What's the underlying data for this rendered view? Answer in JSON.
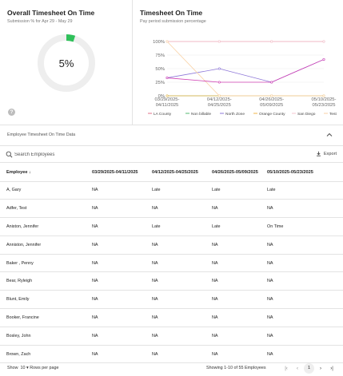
{
  "overall": {
    "title": "Overall Timesheet On Time",
    "subtitle": "Submission % for Apr 29 - May 29",
    "percent_label": "5%",
    "percent_value": 5,
    "progress_color": "#2fc05a",
    "track_color": "#eeeeee",
    "help_icon": "question-circle-icon"
  },
  "timesheet_chart": {
    "title": "Timesheet On Time",
    "subtitle": "Pay period submission percentage"
  },
  "chart_data": {
    "type": "line",
    "title": "Timesheet On Time",
    "subtitle": "Pay period submission percentage",
    "categories": [
      [
        "03/29/2025-",
        "04/11/2025"
      ],
      [
        "04/12/2025-",
        "04/25/2025"
      ],
      [
        "04/26/2025-",
        "05/09/2025"
      ],
      [
        "05/10/2025-",
        "05/23/2025"
      ]
    ],
    "y_ticks": [
      "0%",
      "25%",
      "50%",
      "75%",
      "100%"
    ],
    "ylim": [
      0,
      100
    ],
    "grid": true,
    "legend_position": "bottom",
    "series": [
      {
        "name": "LA County",
        "color": "#e0708a",
        "values": [
          100,
          100,
          100,
          100
        ]
      },
      {
        "name": "Non billable",
        "color": "#56b870",
        "values": [
          0,
          0,
          0,
          0
        ]
      },
      {
        "name": "North Zone",
        "color": "#8e77d8",
        "values": [
          33,
          50,
          25,
          67
        ]
      },
      {
        "name": "Orange County",
        "color": "#f0b64a",
        "values": [
          0,
          0,
          0,
          0
        ]
      },
      {
        "name": "San Diego",
        "color": "#f4c6cf",
        "values": [
          100,
          100,
          100,
          100
        ]
      },
      {
        "name": "Test",
        "color": "#f9d2a6",
        "values": [
          100,
          0,
          0,
          0
        ]
      },
      {
        "name": "",
        "color": "#cf3fb3",
        "values": [
          33,
          25,
          25,
          67
        ]
      }
    ]
  },
  "section": {
    "title": "Employee Timesheet On Time Data",
    "collapse_icon": "chevron-up-icon"
  },
  "search": {
    "placeholder": "Search Employees",
    "icon": "search-icon"
  },
  "export": {
    "label": "Export",
    "icon": "download-icon"
  },
  "table": {
    "headers": [
      "Employee",
      "03/29/2025-04/11/2025",
      "04/12/2025-04/25/2025",
      "04/26/2025-05/09/2025",
      "05/10/2025-05/23/2025"
    ],
    "sort_icon": "arrow-down-icon",
    "rows": [
      [
        "A, Gary",
        "NA",
        "Late",
        "Late",
        "Late"
      ],
      [
        "Adfer, Test",
        "NA",
        "NA",
        "NA",
        "NA"
      ],
      [
        "Aniston, Jennifer",
        "NA",
        "Late",
        "Late",
        "On Time"
      ],
      [
        "Anniston, Jennifer",
        "NA",
        "NA",
        "NA",
        "NA"
      ],
      [
        "Baker , Penny",
        "NA",
        "NA",
        "NA",
        "NA"
      ],
      [
        "Bear, Ryleigh",
        "NA",
        "NA",
        "NA",
        "NA"
      ],
      [
        "Blunt, Emily",
        "NA",
        "NA",
        "NA",
        "NA"
      ],
      [
        "Booker, Francine",
        "NA",
        "NA",
        "NA",
        "NA"
      ],
      [
        "Bosley, John",
        "NA",
        "NA",
        "NA",
        "NA"
      ],
      [
        "Brown, Zach",
        "NA",
        "NA",
        "NA",
        "NA"
      ]
    ]
  },
  "footer": {
    "show_label": "Show",
    "page_size": "10",
    "rows_per_page": "Rows per page",
    "showing": "Showing 1-10 of 55 Employees",
    "current_page": "1",
    "first_icon": "first-page-icon",
    "prev_icon": "chevron-left-icon",
    "next_icon": "chevron-right-icon",
    "last_icon": "last-page-icon"
  }
}
